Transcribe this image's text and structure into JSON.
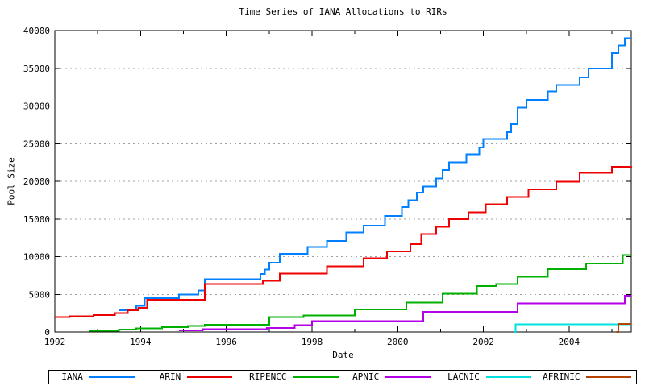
{
  "chart_data": {
    "type": "line",
    "subtype": "steps",
    "title": "Time Series of IANA Allocations to RIRs",
    "xlabel": "Date",
    "ylabel": "Pool Size",
    "xlim": [
      1992,
      2005.45
    ],
    "ylim": [
      0,
      40000
    ],
    "xticks": [
      1992,
      1994,
      1996,
      1998,
      2000,
      2002,
      2004
    ],
    "xtick_labels": [
      "1992",
      "1994",
      "1996",
      "1998",
      "2000",
      "2002",
      "2004"
    ],
    "minor_xticks": [
      1993,
      1995,
      1997,
      1999,
      2001,
      2003,
      2005
    ],
    "yticks": [
      0,
      5000,
      10000,
      15000,
      20000,
      25000,
      30000,
      35000,
      40000
    ],
    "ytick_labels": [
      "0",
      "5000",
      "10000",
      "15000",
      "20000",
      "25000",
      "30000",
      "35000",
      "40000"
    ],
    "grid": "horizontal-dashed",
    "grid_color": "#a0a0a0",
    "axis_color": "#000000",
    "legend_position": "bottom-outside",
    "series": [
      {
        "name": "IANA",
        "color": "#0080ff",
        "points": [
          [
            1993.5,
            2900
          ],
          [
            1993.9,
            3500
          ],
          [
            1994.1,
            4500
          ],
          [
            1994.9,
            4950
          ],
          [
            1995.35,
            5500
          ],
          [
            1995.5,
            7000
          ],
          [
            1996.8,
            7700
          ],
          [
            1996.9,
            8300
          ],
          [
            1997.0,
            9200
          ],
          [
            1997.25,
            10400
          ],
          [
            1997.9,
            11300
          ],
          [
            1998.35,
            12100
          ],
          [
            1998.8,
            13200
          ],
          [
            1999.2,
            14100
          ],
          [
            1999.7,
            15400
          ],
          [
            2000.1,
            16600
          ],
          [
            2000.25,
            17500
          ],
          [
            2000.45,
            18500
          ],
          [
            2000.6,
            19300
          ],
          [
            2000.9,
            20400
          ],
          [
            2001.05,
            21500
          ],
          [
            2001.2,
            22500
          ],
          [
            2001.6,
            23600
          ],
          [
            2001.9,
            24500
          ],
          [
            2002.0,
            25600
          ],
          [
            2002.55,
            26500
          ],
          [
            2002.65,
            27600
          ],
          [
            2002.8,
            29800
          ],
          [
            2003.0,
            30800
          ],
          [
            2003.5,
            31900
          ],
          [
            2003.7,
            32800
          ],
          [
            2004.25,
            33800
          ],
          [
            2004.45,
            35000
          ],
          [
            2005.0,
            37000
          ],
          [
            2005.15,
            38000
          ],
          [
            2005.3,
            39000
          ],
          [
            2005.45,
            39000
          ]
        ]
      },
      {
        "name": "ARIN",
        "color": "#ee0000",
        "points": [
          [
            1992.0,
            2000
          ],
          [
            1992.35,
            2100
          ],
          [
            1992.9,
            2250
          ],
          [
            1993.4,
            2500
          ],
          [
            1993.7,
            2900
          ],
          [
            1993.95,
            3200
          ],
          [
            1994.15,
            4300
          ],
          [
            1995.5,
            6350
          ],
          [
            1996.85,
            6800
          ],
          [
            1997.25,
            7750
          ],
          [
            1998.35,
            8700
          ],
          [
            1999.2,
            9800
          ],
          [
            1999.75,
            10700
          ],
          [
            2000.3,
            11650
          ],
          [
            2000.55,
            13000
          ],
          [
            2000.9,
            13950
          ],
          [
            2001.2,
            15000
          ],
          [
            2001.65,
            15900
          ],
          [
            2002.05,
            16950
          ],
          [
            2002.55,
            17900
          ],
          [
            2003.05,
            18950
          ],
          [
            2003.7,
            19950
          ],
          [
            2004.25,
            21100
          ],
          [
            2005.0,
            21950
          ],
          [
            2005.45,
            22000
          ]
        ]
      },
      {
        "name": "RIPENCC",
        "color": "#00b000",
        "points": [
          [
            1992.8,
            150
          ],
          [
            1993.5,
            300
          ],
          [
            1993.9,
            500
          ],
          [
            1994.5,
            650
          ],
          [
            1995.1,
            800
          ],
          [
            1995.5,
            950
          ],
          [
            1997.0,
            2000
          ],
          [
            1997.8,
            2200
          ],
          [
            1999.0,
            3000
          ],
          [
            2000.2,
            3900
          ],
          [
            2001.05,
            5100
          ],
          [
            2001.85,
            6100
          ],
          [
            2002.3,
            6350
          ],
          [
            2002.8,
            7300
          ],
          [
            2003.5,
            8350
          ],
          [
            2004.4,
            9100
          ],
          [
            2005.25,
            10200
          ],
          [
            2005.45,
            10200
          ]
        ]
      },
      {
        "name": "APNIC",
        "color": "#b400e6",
        "points": [
          [
            1994.9,
            200
          ],
          [
            1995.45,
            350
          ],
          [
            1996.95,
            550
          ],
          [
            1997.6,
            900
          ],
          [
            1998.0,
            1450
          ],
          [
            2000.6,
            2700
          ],
          [
            2002.8,
            3800
          ],
          [
            2005.3,
            4800
          ],
          [
            2005.45,
            4800
          ]
        ]
      },
      {
        "name": "LACNIC",
        "color": "#00e0e0",
        "points": [
          [
            2002.7,
            0
          ],
          [
            2002.75,
            1000
          ],
          [
            2005.45,
            1000
          ]
        ]
      },
      {
        "name": "AFRINIC",
        "color": "#b44400",
        "points": [
          [
            2005.1,
            0
          ],
          [
            2005.15,
            1050
          ],
          [
            2005.45,
            1050
          ]
        ]
      }
    ]
  }
}
